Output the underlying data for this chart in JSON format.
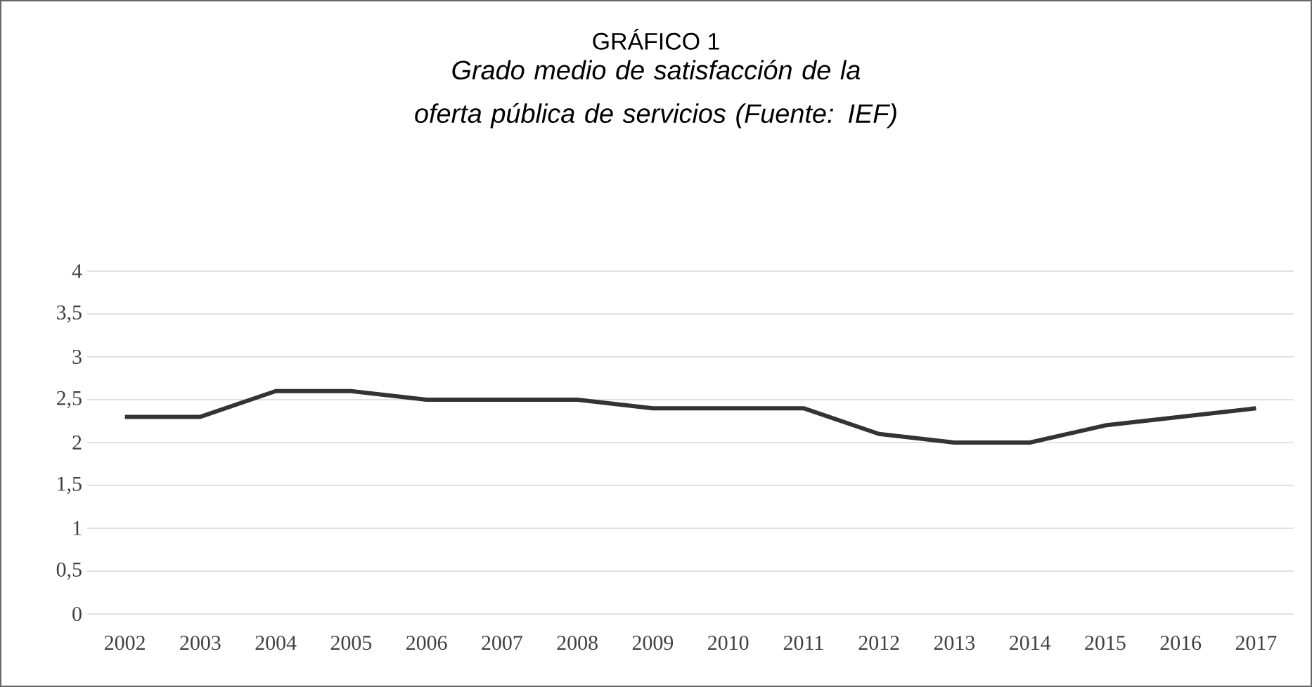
{
  "chart_data": {
    "type": "line",
    "title": "GRÁFICO 1",
    "subtitle": "Grado medio de satisfacción de la oferta pública de servicios (Fuente: IEF)",
    "categories": [
      "2002",
      "2003",
      "2004",
      "2005",
      "2006",
      "2007",
      "2008",
      "2009",
      "2010",
      "2011",
      "2012",
      "2013",
      "2014",
      "2015",
      "2016",
      "2017"
    ],
    "values": [
      2.3,
      2.3,
      2.6,
      2.6,
      2.5,
      2.5,
      2.5,
      2.4,
      2.4,
      2.4,
      2.1,
      2.0,
      2.0,
      2.2,
      2.3,
      2.4
    ],
    "color": "#333333",
    "ylim": [
      0,
      4
    ],
    "yticks": [
      0,
      {
        "value": 0.5,
        "label": "0,5"
      },
      1,
      {
        "value": 1.5,
        "label": "1,5"
      },
      2,
      {
        "value": 2.5,
        "label": "2,5"
      },
      3,
      {
        "value": 3.5,
        "label": "3,5"
      },
      4
    ],
    "grid": "y",
    "marker": "none",
    "line_style": "solid"
  }
}
